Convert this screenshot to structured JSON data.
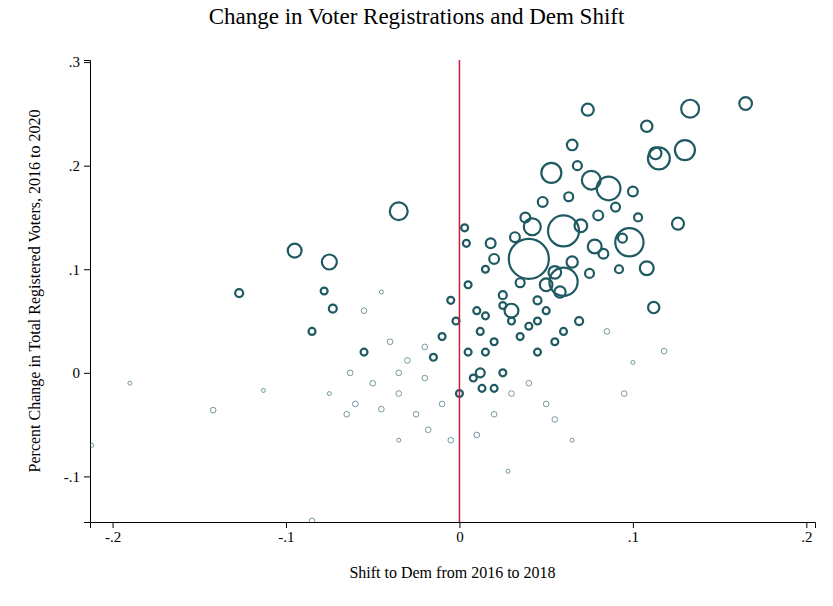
{
  "chart_data": {
    "type": "scatter",
    "title": "Change in Voter Registrations and Dem Shift",
    "x_label": "Shift to Dem from 2016 to 2018",
    "y_label": "Percent Change in Total Registered Voters, 2016 to 2020",
    "color": "#1f5a63",
    "vline": {
      "x": 0,
      "color": "#c41e3a"
    },
    "xlim": [
      -0.213,
      0.205
    ],
    "ylim": [
      -0.144,
      0.302
    ],
    "xticks": [
      {
        "value": -0.2,
        "label": "-.2"
      },
      {
        "value": -0.1,
        "label": "-.1"
      },
      0,
      {
        "value": 0.1,
        "label": ".1"
      },
      {
        "value": 0.2,
        "label": ".2"
      }
    ],
    "yticks": [
      {
        "value": -0.1,
        "label": "-.1"
      },
      0,
      {
        "value": 0.1,
        "label": ".1"
      },
      {
        "value": 0.2,
        "label": ".2"
      },
      {
        "value": 0.3,
        "label": ".3"
      }
    ],
    "x": [
      0.04,
      0.06,
      0.06,
      0.098,
      0.086,
      0.115,
      0.13,
      0.133,
      0.053,
      0.076,
      0.042,
      0.03,
      -0.035,
      -0.095,
      -0.075,
      0.165,
      0.074,
      0.108,
      0.065,
      0.113,
      0.108,
      0.126,
      0.112,
      0.078,
      0.07,
      0.055,
      0.058,
      0.065,
      0.05,
      0.02,
      0.018,
      0.032,
      0.038,
      0.048,
      0.063,
      0.068,
      0.08,
      0.09,
      0.1,
      0.094,
      0.083,
      0.075,
      0.092,
      0.103,
      0.069,
      0.035,
      0.045,
      0.025,
      0.012,
      0.01,
      0.005,
      0.003,
      0.004,
      0.015,
      -0.127,
      -0.078,
      -0.073,
      -0.085,
      -0.055,
      -0.045,
      -0.005,
      -0.002,
      -0.01,
      -0.015,
      -0.03,
      -0.04,
      -0.055,
      -0.063,
      -0.05,
      -0.035,
      -0.02,
      -0.01,
      -0.025,
      -0.045,
      -0.06,
      -0.035,
      -0.018,
      -0.005,
      0.0,
      0.005,
      0.015,
      0.02,
      0.025,
      0.012,
      0.013,
      0.03,
      0.04,
      0.05,
      0.055,
      0.065,
      0.045,
      0.055,
      0.06,
      0.035,
      0.03,
      0.04,
      0.02,
      0.01,
      0.028,
      0.085,
      0.095,
      0.1,
      0.118,
      -0.19,
      -0.212,
      -0.142,
      -0.113,
      -0.085,
      -0.075,
      -0.065,
      -0.035,
      0.015,
      0.025,
      0.045,
      0.05,
      -0.02,
      0.008,
      0.02
    ],
    "y": [
      0.11,
      0.137,
      0.088,
      0.126,
      0.178,
      0.207,
      0.215,
      0.255,
      0.193,
      0.186,
      0.141,
      0.06,
      0.156,
      0.118,
      0.107,
      0.26,
      0.254,
      0.238,
      0.22,
      0.212,
      0.101,
      0.144,
      0.063,
      0.122,
      0.142,
      0.097,
      0.078,
      0.107,
      0.085,
      0.11,
      0.125,
      0.131,
      0.15,
      0.165,
      0.17,
      0.2,
      0.152,
      0.16,
      0.175,
      0.13,
      0.115,
      0.096,
      0.1,
      0.15,
      0.05,
      0.087,
      0.07,
      0.075,
      0.04,
      0.06,
      0.085,
      0.14,
      0.125,
      0.1,
      0.077,
      0.079,
      0.062,
      0.04,
      0.06,
      0.078,
      0.07,
      0.05,
      0.035,
      0.015,
      0.012,
      0.03,
      0.02,
      0.0,
      -0.01,
      -0.02,
      -0.005,
      -0.03,
      -0.04,
      -0.035,
      -0.03,
      -0.065,
      -0.055,
      -0.065,
      -0.02,
      0.02,
      0.02,
      0.03,
      0.0,
      0.0,
      -0.015,
      -0.02,
      -0.01,
      -0.03,
      -0.045,
      -0.065,
      0.02,
      0.03,
      0.04,
      0.035,
      0.05,
      0.045,
      -0.04,
      -0.06,
      -0.095,
      0.04,
      -0.02,
      0.01,
      0.021,
      -0.01,
      -0.07,
      -0.036,
      -0.017,
      -0.143,
      -0.02,
      -0.04,
      0.0,
      0.055,
      0.065,
      0.05,
      0.06,
      0.025,
      -0.005,
      -0.015
    ],
    "sizes": [
      100,
      60,
      50,
      50,
      35,
      30,
      25,
      20,
      25,
      22,
      18,
      12,
      20,
      12,
      14,
      10,
      9,
      8,
      7,
      9,
      12,
      9,
      8,
      12,
      10,
      10,
      8,
      8,
      10,
      6,
      6,
      6,
      6,
      6,
      5,
      5,
      6,
      5,
      6,
      5,
      6,
      5,
      4,
      4,
      4,
      5,
      4,
      4,
      3,
      3,
      3,
      3,
      3,
      3,
      4,
      3,
      4,
      3,
      2,
      1,
      3,
      3,
      3,
      3,
      2,
      2,
      3,
      2,
      2,
      2,
      2,
      2,
      2,
      2,
      2,
      1,
      2,
      2,
      3,
      3,
      3,
      3,
      3,
      5,
      3,
      2,
      2,
      2,
      2,
      1,
      3,
      3,
      3,
      3,
      3,
      3,
      2,
      2,
      1,
      2,
      2,
      1,
      2,
      1,
      1,
      2,
      1,
      2,
      1,
      2,
      2,
      3,
      3,
      3,
      3,
      2,
      3,
      3
    ]
  }
}
